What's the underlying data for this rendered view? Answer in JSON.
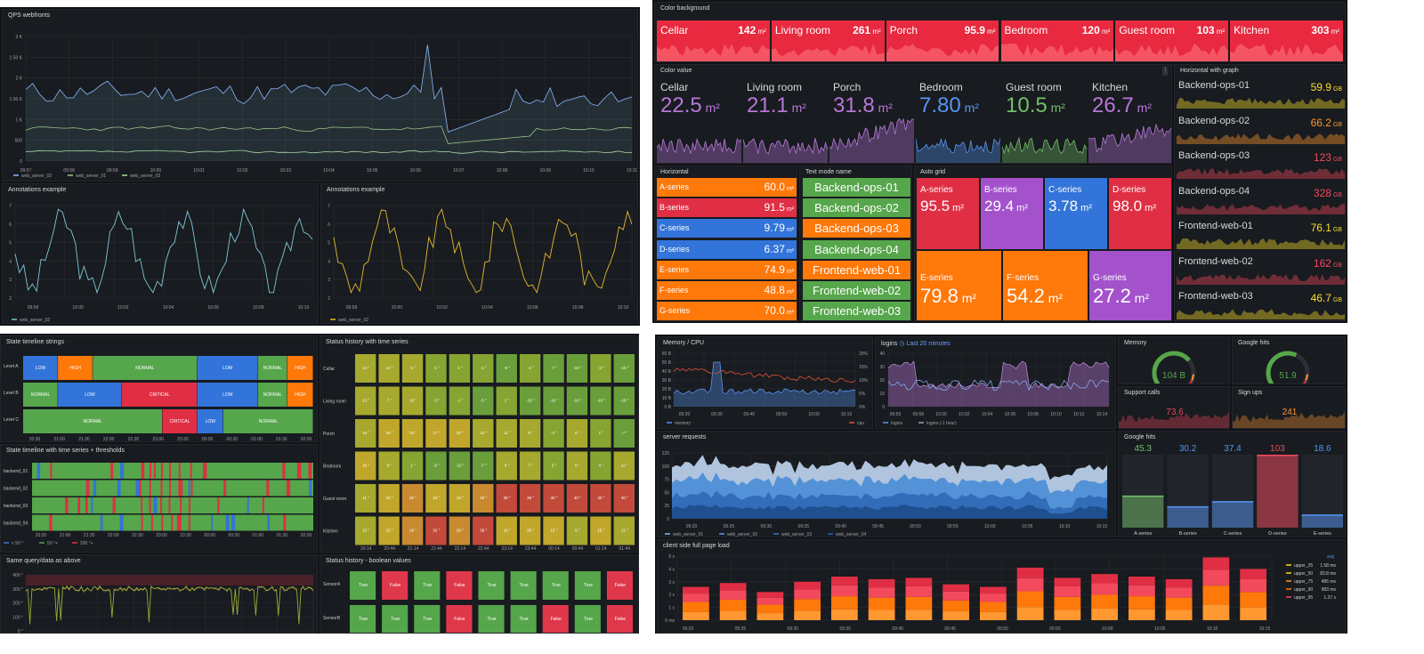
{
  "q1": {
    "qps": {
      "title": "QPS webfronts",
      "yticks": [
        "3 K",
        "2.50 K",
        "2 K",
        "1.50 K",
        "1 K",
        "500",
        "0"
      ],
      "xticks": [
        "09:57",
        "09:58",
        "09:59",
        "10:00",
        "10:01",
        "10:02",
        "10:03",
        "10:04",
        "10:05",
        "10:06",
        "10:07",
        "10:08",
        "10:09",
        "10:10",
        "10:11"
      ],
      "legend": [
        "web_server_02",
        "web_server_01",
        "web_server_03"
      ]
    },
    "ann1": {
      "title": "Annotations example",
      "yticks": [
        "7",
        "6",
        "5",
        "4",
        "3",
        "2"
      ],
      "xticks": [
        "09:58",
        "10:00",
        "10:02",
        "10:04",
        "10:06",
        "10:08",
        "10:10"
      ],
      "legend": "web_server_02"
    },
    "ann2": {
      "title": "Annotations example",
      "yticks": [
        "7",
        "6",
        "5",
        "4",
        "3",
        "2"
      ],
      "xticks": [
        "09:58",
        "10:00",
        "10:02",
        "10:04",
        "10:06",
        "10:08",
        "10:10"
      ],
      "legend": "web_server_02"
    }
  },
  "q2": {
    "bg": {
      "title": "Color background",
      "items": [
        {
          "name": "Cellar",
          "value": "142",
          "unit": "m²"
        },
        {
          "name": "Living room",
          "value": "261",
          "unit": "m²"
        },
        {
          "name": "Porch",
          "value": "95.9",
          "unit": "m²"
        },
        {
          "name": "Bedroom",
          "value": "120",
          "unit": "m²"
        },
        {
          "name": "Guest room",
          "value": "103",
          "unit": "m²"
        },
        {
          "name": "Kitchen",
          "value": "303",
          "unit": "m²"
        }
      ]
    },
    "cv": {
      "title": "Color value",
      "items": [
        {
          "name": "Cellar",
          "value": "22.5",
          "unit": "m²",
          "color": "#b877d9"
        },
        {
          "name": "Living room",
          "value": "21.1",
          "unit": "m²",
          "color": "#b877d9"
        },
        {
          "name": "Porch",
          "value": "31.8",
          "unit": "m²",
          "color": "#b877d9"
        },
        {
          "name": "Bedroom",
          "value": "7.80",
          "unit": "m²",
          "color": "#5794f2"
        },
        {
          "name": "Guest room",
          "value": "10.5",
          "unit": "m²",
          "color": "#73bf69"
        },
        {
          "name": "Kitchen",
          "value": "26.7",
          "unit": "m²",
          "color": "#b877d9"
        }
      ]
    },
    "horiz": {
      "title": "Horizontal",
      "items": [
        {
          "name": "A-series",
          "value": "60.0",
          "unit": "m²",
          "color": "#ff780a"
        },
        {
          "name": "B-series",
          "value": "91.5",
          "unit": "m²",
          "color": "#e02f44"
        },
        {
          "name": "C-series",
          "value": "9.79",
          "unit": "m²",
          "color": "#3274d9"
        },
        {
          "name": "D-series",
          "value": "6.37",
          "unit": "m²",
          "color": "#3274d9"
        },
        {
          "name": "E-series",
          "value": "74.9",
          "unit": "m²",
          "color": "#ff780a"
        },
        {
          "name": "F-series",
          "value": "48.8",
          "unit": "m²",
          "color": "#ff780a"
        },
        {
          "name": "G-series",
          "value": "70.0",
          "unit": "m²",
          "color": "#ff780a"
        }
      ]
    },
    "text": {
      "title": "Text mode name",
      "items": [
        {
          "name": "Backend-ops-01",
          "color": "#56a64b"
        },
        {
          "name": "Backend-ops-02",
          "color": "#56a64b"
        },
        {
          "name": "Backend-ops-03",
          "color": "#ff780a"
        },
        {
          "name": "Backend-ops-04",
          "color": "#56a64b"
        },
        {
          "name": "Frontend-web-01",
          "color": "#ff780a"
        },
        {
          "name": "Frontend-web-02",
          "color": "#56a64b"
        },
        {
          "name": "Frontend-web-03",
          "color": "#56a64b"
        }
      ]
    },
    "auto": {
      "title": "Auto grid",
      "items": [
        {
          "name": "A-series",
          "value": "95.5",
          "unit": "m²",
          "color": "#e02f44"
        },
        {
          "name": "B-series",
          "value": "29.4",
          "unit": "m²",
          "color": "#a352cc"
        },
        {
          "name": "C-series",
          "value": "3.78",
          "unit": "m²",
          "color": "#3274d9"
        },
        {
          "name": "D-series",
          "value": "98.0",
          "unit": "m²",
          "color": "#e02f44"
        },
        {
          "name": "E-series",
          "value": "79.8",
          "unit": "m²",
          "color": "#ff780a"
        },
        {
          "name": "F-series",
          "value": "54.2",
          "unit": "m²",
          "color": "#ff780a"
        },
        {
          "name": "G-series",
          "value": "27.2",
          "unit": "m²",
          "color": "#a352cc"
        }
      ]
    },
    "hg": {
      "title": "Horizontal with graph",
      "items": [
        {
          "name": "Backend-ops-01",
          "value": "59.9",
          "unit": "GB",
          "color": "#fade2a"
        },
        {
          "name": "Backend-ops-02",
          "value": "66.2",
          "unit": "GB",
          "color": "#ff9830"
        },
        {
          "name": "Backend-ops-03",
          "value": "123",
          "unit": "GB",
          "color": "#f2495c"
        },
        {
          "name": "Backend-ops-04",
          "value": "328",
          "unit": "GB",
          "color": "#f2495c"
        },
        {
          "name": "Frontend-web-01",
          "value": "76.1",
          "unit": "GB",
          "color": "#fade2a"
        },
        {
          "name": "Frontend-web-02",
          "value": "162",
          "unit": "GB",
          "color": "#f2495c"
        },
        {
          "name": "Frontend-web-03",
          "value": "46.7",
          "unit": "GB",
          "color": "#fade2a"
        }
      ]
    }
  },
  "q3": {
    "tl": {
      "title": "State timeline strings",
      "rows": [
        {
          "label": "Level A",
          "segs": [
            [
              "LOW",
              0,
              0.12,
              "#3274d9"
            ],
            [
              "HIGH",
              0.12,
              0.24,
              "#ff780a"
            ],
            [
              "NORMAL",
              0.24,
              0.6,
              "#56a64b"
            ],
            [
              "LOW",
              0.6,
              0.81,
              "#3274d9"
            ],
            [
              "NORMAL",
              0.81,
              0.91,
              "#56a64b"
            ],
            [
              "HIGH",
              0.91,
              1,
              "#ff780a"
            ]
          ]
        },
        {
          "label": "Level B",
          "segs": [
            [
              "NORMAL",
              0,
              0.12,
              "#56a64b"
            ],
            [
              "LOW",
              0.12,
              0.34,
              "#3274d9"
            ],
            [
              "CRITICAL",
              0.34,
              0.6,
              "#e02f44"
            ],
            [
              "LOW",
              0.6,
              0.81,
              "#3274d9"
            ],
            [
              "NORMAL",
              0.81,
              0.91,
              "#56a64b"
            ],
            [
              "HIGH",
              0.91,
              1,
              "#ff780a"
            ]
          ]
        },
        {
          "label": "Level C",
          "segs": [
            [
              "NORMAL",
              0,
              0.48,
              "#56a64b"
            ],
            [
              "CRITICAL",
              0.48,
              0.6,
              "#e02f44"
            ],
            [
              "LOW",
              0.6,
              0.69,
              "#3274d9"
            ],
            [
              "NORMAL",
              0.69,
              1,
              "#56a64b"
            ]
          ]
        }
      ],
      "xticks": [
        "20:30",
        "21:00",
        "21:30",
        "22:00",
        "22:30",
        "23:00",
        "23:30",
        "00:00",
        "00:30",
        "01:00",
        "01:30",
        "02:00"
      ]
    },
    "tl2": {
      "title": "State timeline with time series + thresholds",
      "rows": [
        "backend_01",
        "backend_02",
        "backend_03",
        "backend_04"
      ],
      "xticks": [
        "20:30",
        "21:00",
        "21:30",
        "22:00",
        "22:30",
        "23:00",
        "23:30",
        "00:00",
        "00:30",
        "01:00",
        "01:30",
        "02:00"
      ],
      "legend": [
        "< 50 °",
        "50 °+",
        "200 °+"
      ]
    },
    "sq": {
      "title": "Same query/data as above",
      "yticks": [
        "400 °",
        "300 °",
        "200 °",
        "100 °",
        "0 °"
      ]
    },
    "sh": {
      "title": "Status history with time series",
      "rows": [
        "Cellar",
        "Living room",
        "Porch",
        "Bedroom",
        "Guest room",
        "Kitchen"
      ],
      "xticks": [
        "20:14",
        "20:44",
        "21:14",
        "21:44",
        "22:14",
        "22:44",
        "23:14",
        "23:44",
        "00:14",
        "00:44",
        "01:14",
        "01:44"
      ],
      "values": [
        [
          "13 °",
          "13 °",
          "5 °",
          "-1 °",
          "4 °",
          "-2 °",
          "-9 °",
          "-4 °",
          "-7 °",
          "-10 °",
          "-3 °",
          "-10 °"
        ],
        [
          "13 °",
          "7 °",
          "10 °",
          "-3 °",
          "-1 °",
          "-5 °",
          "2 °",
          "-10 °",
          "-10 °",
          "-10 °",
          "-10 °",
          "-10 °"
        ],
        [
          "10 °",
          "18 °",
          "22 °",
          "17 °",
          "20 °",
          "13 °",
          "11 °",
          "8 °",
          "-3 °",
          "5 °",
          "1 °",
          "-7 °"
        ],
        [
          "16 °",
          "8 °",
          "1 °",
          "-8 °",
          "-10 °",
          "-7 °",
          "8 °",
          "7 °",
          "3 °",
          "8 °",
          "4 °",
          "12 °"
        ],
        [
          "11 °",
          "15 °",
          "26 °",
          "16 °",
          "15 °",
          "30 °",
          "39 °",
          "36 °",
          "40 °",
          "40 °",
          "40 °",
          "40 °"
        ],
        [
          "13 °",
          "23 °",
          "29 °",
          "32 °",
          "25 °",
          "39 °",
          "16 °",
          "20 °",
          "15 °",
          "8 °",
          "15 °",
          "12 °"
        ]
      ]
    },
    "sb": {
      "title": "Status history - boolean values",
      "rows": [
        {
          "label": "SensorA",
          "vals": [
            "True",
            "False",
            "True",
            "False",
            "True",
            "True",
            "True",
            "True",
            "False"
          ]
        },
        {
          "label": "SensorB",
          "vals": [
            "True",
            "True",
            "True",
            "False",
            "True",
            "True",
            "False",
            "True",
            "False"
          ]
        }
      ]
    }
  },
  "q4": {
    "mem": {
      "title": "Memory / CPU",
      "yleft": [
        "60 B",
        "50 B",
        "40 B",
        "30 B",
        "20 B",
        "10 B",
        "0 B"
      ],
      "yright": [
        "20%",
        "15%",
        "10%",
        "5%",
        "0%"
      ],
      "xticks": [
        "09:20",
        "09:30",
        "09:40",
        "09:50",
        "10:00",
        "10:10"
      ],
      "legend": [
        "memory",
        "cpu"
      ]
    },
    "logins": {
      "title": "logins",
      "badge": "Last 20 minutes",
      "yticks": [
        "40",
        "30",
        "20",
        "10",
        "0"
      ],
      "xticks": [
        "09:56",
        "09:58",
        "10:00",
        "10:02",
        "10:04",
        "10:06",
        "10:08",
        "10:10",
        "10:12",
        "10:14"
      ],
      "legend": [
        "logins",
        "logins (-1 hour)"
      ]
    },
    "memg": {
      "title": "Memory",
      "value": "104 B"
    },
    "gh": {
      "title": "Google hits",
      "value": "51.9"
    },
    "sc": {
      "title": "Support calls",
      "value": "73.6"
    },
    "su": {
      "title": "Sign ups",
      "value": "241"
    },
    "sr": {
      "title": "server requests",
      "yticks": [
        "125",
        "100",
        "75",
        "50",
        "25",
        "0"
      ],
      "xticks": [
        "09:20",
        "09:25",
        "09:30",
        "09:35",
        "09:40",
        "09:45",
        "09:50",
        "09:55",
        "10:00",
        "10:05",
        "10:10",
        "10:15"
      ],
      "legend": [
        "web_server_01",
        "web_server_02",
        "web_server_03",
        "web_server_04"
      ]
    },
    "ghb": {
      "title": "Google hits",
      "bars": [
        {
          "name": "A-series",
          "value": "45.3",
          "color": "#73bf69"
        },
        {
          "name": "B-series",
          "value": "30.2",
          "color": "#5794f2"
        },
        {
          "name": "C-series",
          "value": "37.4",
          "color": "#5794f2"
        },
        {
          "name": "D-series",
          "value": "103",
          "color": "#f2495c"
        },
        {
          "name": "E-series",
          "value": "18.6",
          "color": "#5794f2"
        }
      ]
    },
    "cs": {
      "title": "client side full page load",
      "yticks": [
        "5 s",
        "4 s",
        "3 s",
        "2 s",
        "1 s",
        "0 ms"
      ],
      "xticks": [
        "09:20",
        "09:25",
        "09:30",
        "09:35",
        "09:40",
        "09:45",
        "09:50",
        "09:55",
        "10:00",
        "10:05",
        "10:10",
        "10:15"
      ],
      "legend_header": "avg",
      "legend": [
        {
          "name": "upper_25",
          "value": "1.58 ms",
          "color": "#fade2a"
        },
        {
          "name": "upper_50",
          "value": "83.8 ms",
          "color": "#fade2a"
        },
        {
          "name": "upper_75",
          "value": "486 ms",
          "color": "#ff9830"
        },
        {
          "name": "upper_90",
          "value": "983 ms",
          "color": "#ff780a"
        },
        {
          "name": "upper_95",
          "value": "1.37 s",
          "color": "#f2495c"
        }
      ]
    }
  }
}
